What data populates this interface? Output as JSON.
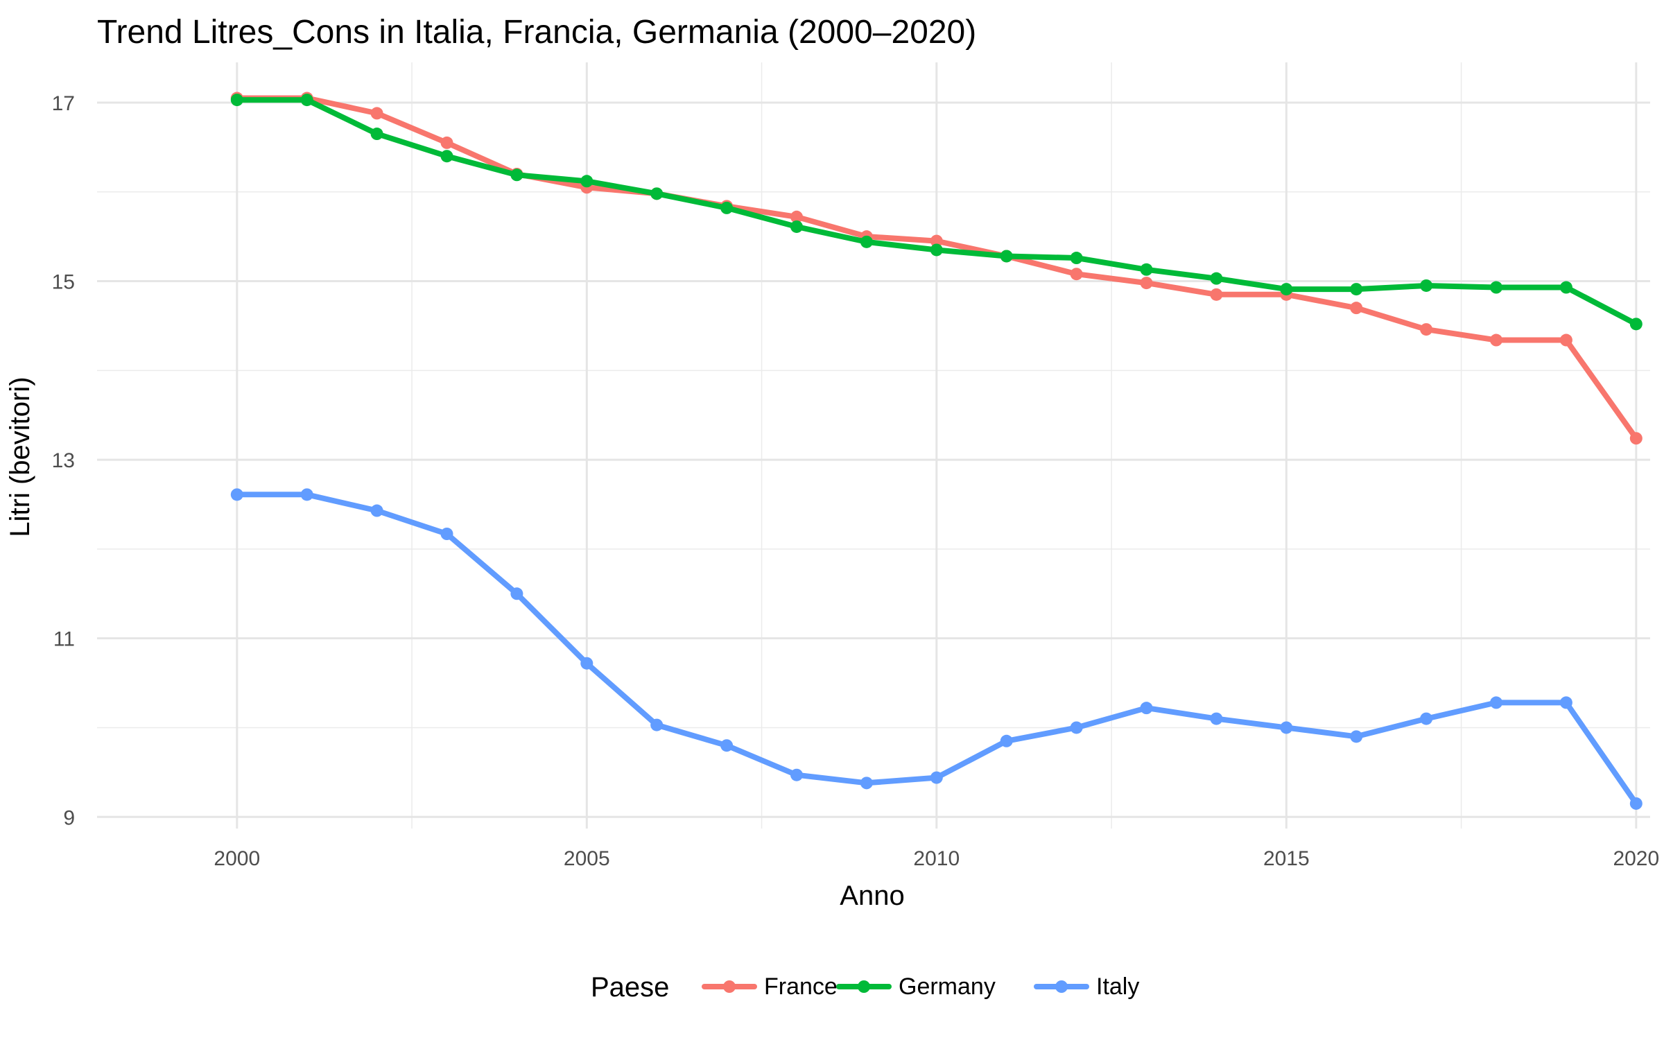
{
  "chart_data": {
    "type": "line",
    "title": "Trend Litres_Cons in Italia, Francia, Germania (2000–2020)",
    "xlabel": "Anno",
    "ylabel": "Litri (bevitori)",
    "x": [
      2000,
      2001,
      2002,
      2003,
      2004,
      2005,
      2006,
      2007,
      2008,
      2009,
      2010,
      2011,
      2012,
      2013,
      2014,
      2015,
      2016,
      2017,
      2018,
      2019,
      2020
    ],
    "xlim": [
      1998,
      2020.2
    ],
    "ylim": [
      8.87,
      17.45
    ],
    "x_ticks": [
      2000,
      2005,
      2010,
      2015,
      2020
    ],
    "x_tick_labels": [
      "2000",
      "2005",
      "2010",
      "2015",
      "2020"
    ],
    "y_ticks": [
      9,
      11,
      13,
      15,
      17
    ],
    "y_tick_labels": [
      "9",
      "11",
      "13",
      "15",
      "17"
    ],
    "grid": true,
    "legend": {
      "title": "Paese",
      "position": "bottom"
    },
    "series": [
      {
        "name": "France",
        "color": "#F8766D",
        "values": [
          17.05,
          17.05,
          16.88,
          16.55,
          16.2,
          16.05,
          15.98,
          15.84,
          15.72,
          15.5,
          15.45,
          15.28,
          15.08,
          14.98,
          14.85,
          14.85,
          14.7,
          14.46,
          14.34,
          14.34,
          13.24
        ]
      },
      {
        "name": "Germany",
        "color": "#00BA38",
        "values": [
          17.03,
          17.03,
          16.65,
          16.4,
          16.19,
          16.12,
          15.98,
          15.82,
          15.61,
          15.44,
          15.35,
          15.28,
          15.26,
          15.13,
          15.03,
          14.91,
          14.91,
          14.95,
          14.93,
          14.93,
          14.52
        ]
      },
      {
        "name": "Italy",
        "color": "#619CFF",
        "values": [
          12.61,
          12.61,
          12.43,
          12.17,
          11.5,
          10.72,
          10.03,
          9.8,
          9.47,
          9.38,
          9.44,
          9.85,
          10.0,
          10.22,
          10.1,
          10.0,
          9.9,
          10.1,
          10.28,
          10.28,
          9.15
        ]
      }
    ]
  }
}
